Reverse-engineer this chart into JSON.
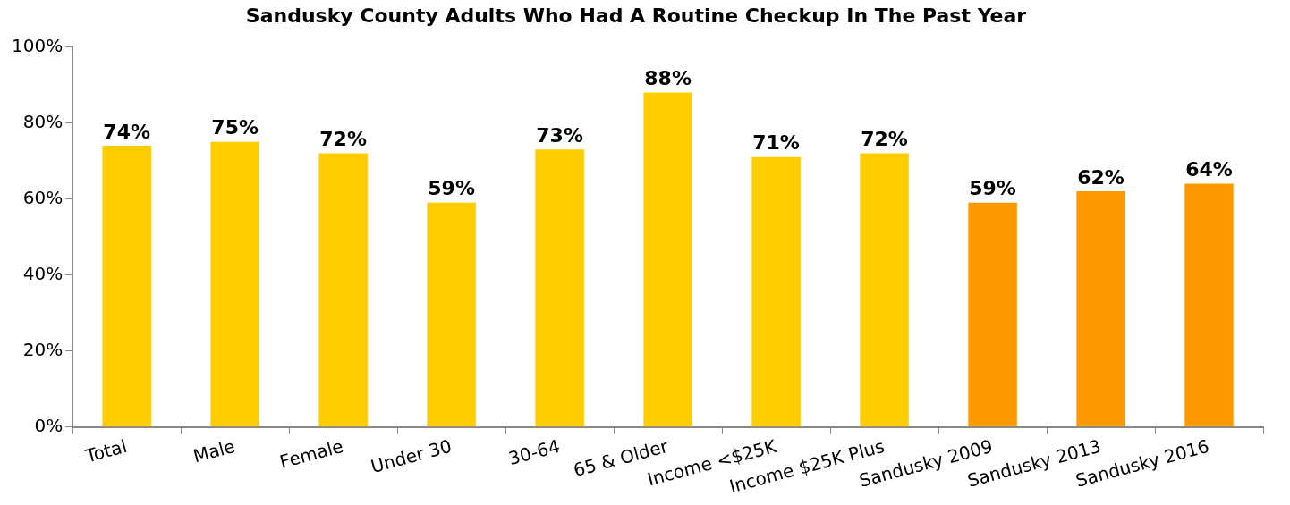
{
  "chart_data": {
    "type": "bar",
    "title": "Sandusky County Adults Who Had A Routine Checkup In The Past Year",
    "categories": [
      "Total",
      "Male",
      "Female",
      "Under 30",
      "30-64",
      "65 & Older",
      "Income <$25K",
      "Income $25K Plus",
      "Sandusky 2009",
      "Sandusky 2013",
      "Sandusky 2016"
    ],
    "values": [
      74,
      75,
      72,
      59,
      73,
      88,
      71,
      72,
      59,
      62,
      64
    ],
    "colors": [
      "#ffcc00",
      "#ffcc00",
      "#ffcc00",
      "#ffcc00",
      "#ffcc00",
      "#ffcc00",
      "#ffcc00",
      "#ffcc00",
      "#ff9900",
      "#ff9900",
      "#ff9900"
    ],
    "value_labels": [
      "74%",
      "75%",
      "72%",
      "59%",
      "73%",
      "88%",
      "71%",
      "72%",
      "59%",
      "62%",
      "64%"
    ],
    "ylim": [
      0,
      100
    ],
    "yticks": [
      {
        "value": 0,
        "label": "0%"
      },
      {
        "value": 20,
        "label": "20%"
      },
      {
        "value": 40,
        "label": "40%"
      },
      {
        "value": 60,
        "label": "60%"
      },
      {
        "value": 80,
        "label": "80%"
      },
      {
        "value": 100,
        "label": "100%"
      }
    ],
    "grid": false,
    "legend": false
  }
}
